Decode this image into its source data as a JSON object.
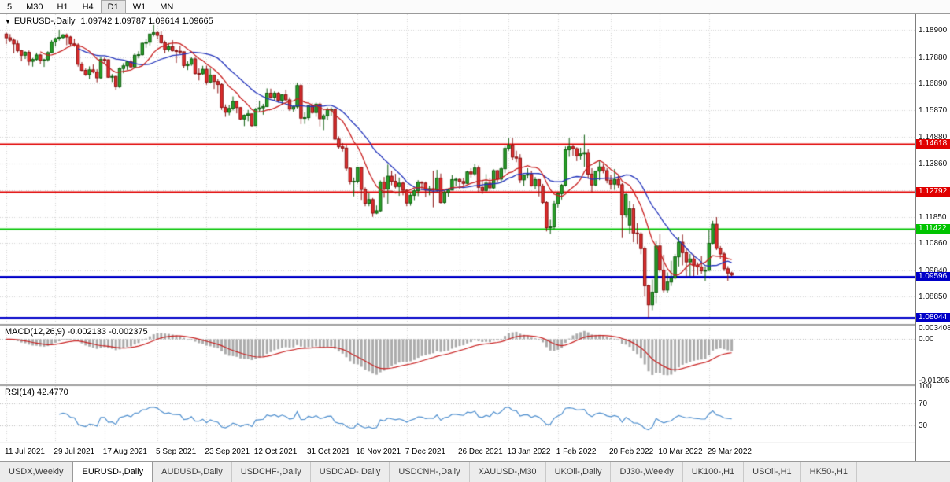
{
  "toolbar": {
    "timeframes": [
      "5",
      "M30",
      "H1",
      "H4",
      "D1",
      "W1",
      "MN"
    ],
    "active": "D1"
  },
  "chart_title": {
    "arrow": "▼",
    "symbol": "EURUSD-,Daily",
    "ohlc": "1.09742 1.09787 1.09614 1.09665"
  },
  "price_axis": {
    "labels": [
      "1.18900",
      "1.17880",
      "1.16890",
      "1.15870",
      "1.14880",
      "1.13860",
      "1.12870",
      "1.11850",
      "1.10860",
      "1.09840",
      "1.08850"
    ]
  },
  "hlines": [
    {
      "value": 1.14618,
      "label": "1.14618",
      "color": "#e00000",
      "width": 2
    },
    {
      "value": 1.12792,
      "label": "1.12792",
      "color": "#e00000",
      "width": 2
    },
    {
      "value": 1.11422,
      "label": "1.11422",
      "color": "#00c400",
      "width": 2
    },
    {
      "value": 1.09596,
      "label": "1.09596",
      "color": "#0000c8",
      "width": 3
    },
    {
      "value": 1.08044,
      "label": "1.08044",
      "color": "#0000c8",
      "width": 3
    }
  ],
  "indicators": {
    "macd": {
      "label": "MACD(12,26,9) -0.002133 -0.002375",
      "params": [
        12,
        26,
        9
      ],
      "values": [
        -0.002133,
        -0.002375
      ],
      "ylim": [
        -0.013,
        0.004
      ],
      "axis_labels": [
        {
          "text": "0.003408",
          "value": 0.003408
        },
        {
          "text": "0.00",
          "value": 0
        },
        {
          "text": "-0.012054",
          "value": -0.012054
        }
      ]
    },
    "rsi": {
      "label": "RSI(14) 42.4770",
      "period": 14,
      "value": 42.477,
      "levels": [
        70,
        30
      ],
      "axis_labels": [
        {
          "text": "100",
          "value": 100
        },
        {
          "text": "70",
          "value": 70
        },
        {
          "text": "30",
          "value": 30
        }
      ]
    }
  },
  "moving_averages": [
    {
      "period": 20,
      "color": "#2233bb"
    },
    {
      "period": 10,
      "color": "#c82020"
    }
  ],
  "colors": {
    "up": "#2aa12a",
    "up_border": "#0c5c0c",
    "down": "#df2e2e",
    "down_border": "#8a1111",
    "macd_hist": "#ababab",
    "macd_signal": "#c82020",
    "rsi": "#4f8fce",
    "grid": "#d2d2d2",
    "level": "#bbbbbb",
    "divider": "#a0a0a0"
  },
  "tab_bar": {
    "tabs": [
      {
        "label": "USDX,Weekly",
        "active": false
      },
      {
        "label": "EURUSD-,Daily",
        "active": true
      },
      {
        "label": "AUDUSD-,Daily",
        "active": false
      },
      {
        "label": "USDCHF-,Daily",
        "active": false
      },
      {
        "label": "USDCAD-,Daily",
        "active": false
      },
      {
        "label": "USDCNH-,Daily",
        "active": false
      },
      {
        "label": "XAUUSD-,M30",
        "active": false
      },
      {
        "label": "UKOil-,Daily",
        "active": false
      },
      {
        "label": "DJ30-,Weekly",
        "active": false
      },
      {
        "label": "UK100-,H1",
        "active": false
      },
      {
        "label": "USOil-,H1",
        "active": false
      },
      {
        "label": "HK50-,H1",
        "active": false
      }
    ]
  },
  "chart_data": {
    "type": "candlestick",
    "title": "EURUSD-,Daily",
    "ylim": [
      1.0785,
      1.195
    ],
    "x_labels": [
      {
        "index": 0,
        "label": "11 Jul 2021"
      },
      {
        "index": 13,
        "label": "29 Jul 2021"
      },
      {
        "index": 26,
        "label": "17 Aug 2021"
      },
      {
        "index": 40,
        "label": "5 Sep 2021"
      },
      {
        "index": 53,
        "label": "23 Sep 2021"
      },
      {
        "index": 66,
        "label": "12 Oct 2021"
      },
      {
        "index": 80,
        "label": "31 Oct 2021"
      },
      {
        "index": 93,
        "label": "18 Nov 2021"
      },
      {
        "index": 106,
        "label": "7 Dec 2021"
      },
      {
        "index": 120,
        "label": "26 Dec 2021"
      },
      {
        "index": 133,
        "label": "13 Jan 2022"
      },
      {
        "index": 146,
        "label": "1 Feb 2022"
      },
      {
        "index": 160,
        "label": "20 Feb 2022"
      },
      {
        "index": 173,
        "label": "10 Mar 2022"
      },
      {
        "index": 186,
        "label": "29 Mar 2022"
      }
    ],
    "candles": [
      [
        1.1875,
        1.1881,
        1.1837,
        1.1861
      ],
      [
        1.1861,
        1.1875,
        1.1844,
        1.1852
      ],
      [
        1.1852,
        1.1859,
        1.1802,
        1.1838
      ],
      [
        1.1838,
        1.1851,
        1.1806,
        1.1812
      ],
      [
        1.1812,
        1.1815,
        1.1772,
        1.1795
      ],
      [
        1.1795,
        1.181,
        1.1781,
        1.1806
      ],
      [
        1.1806,
        1.1813,
        1.1756,
        1.1772
      ],
      [
        1.1772,
        1.1785,
        1.1752,
        1.1779
      ],
      [
        1.1779,
        1.1805,
        1.1775,
        1.1796
      ],
      [
        1.1796,
        1.18,
        1.1762,
        1.1775
      ],
      [
        1.1775,
        1.1782,
        1.1751,
        1.1778
      ],
      [
        1.1778,
        1.181,
        1.1771,
        1.1805
      ],
      [
        1.1805,
        1.1852,
        1.1803,
        1.1845
      ],
      [
        1.1845,
        1.1862,
        1.1828,
        1.1858
      ],
      [
        1.1858,
        1.1891,
        1.185,
        1.1862
      ],
      [
        1.1862,
        1.1875,
        1.1856,
        1.1872
      ],
      [
        1.1872,
        1.1877,
        1.1833,
        1.1864
      ],
      [
        1.1864,
        1.1868,
        1.183,
        1.1838
      ],
      [
        1.1838,
        1.1858,
        1.1827,
        1.1834
      ],
      [
        1.1834,
        1.184,
        1.1752,
        1.1761
      ],
      [
        1.1761,
        1.1769,
        1.1735,
        1.1738
      ],
      [
        1.1738,
        1.1745,
        1.1717,
        1.1722
      ],
      [
        1.1722,
        1.1753,
        1.1705,
        1.174
      ],
      [
        1.174,
        1.176,
        1.1727,
        1.1732
      ],
      [
        1.1732,
        1.1742,
        1.1693,
        1.171
      ],
      [
        1.171,
        1.179,
        1.1705,
        1.1779
      ],
      [
        1.1779,
        1.1786,
        1.1765,
        1.1778
      ],
      [
        1.1778,
        1.1779,
        1.171,
        1.1712
      ],
      [
        1.1712,
        1.1724,
        1.1694,
        1.1715
      ],
      [
        1.1715,
        1.1718,
        1.1664,
        1.1676
      ],
      [
        1.1676,
        1.175,
        1.1671,
        1.1745
      ],
      [
        1.1745,
        1.1765,
        1.1727,
        1.1755
      ],
      [
        1.1755,
        1.1775,
        1.174,
        1.177
      ],
      [
        1.177,
        1.1779,
        1.1745,
        1.1751
      ],
      [
        1.1751,
        1.1802,
        1.1748,
        1.1795
      ],
      [
        1.1795,
        1.181,
        1.1783,
        1.1797
      ],
      [
        1.1797,
        1.1845,
        1.1793,
        1.184
      ],
      [
        1.184,
        1.1857,
        1.1823,
        1.1844
      ],
      [
        1.1844,
        1.1876,
        1.1832,
        1.1875
      ],
      [
        1.1875,
        1.1909,
        1.1866,
        1.188
      ],
      [
        1.188,
        1.1885,
        1.1855,
        1.187
      ],
      [
        1.187,
        1.1885,
        1.1838,
        1.1842
      ],
      [
        1.1842,
        1.185,
        1.1802,
        1.1817
      ],
      [
        1.1817,
        1.1841,
        1.1809,
        1.1827
      ],
      [
        1.1827,
        1.1852,
        1.1809,
        1.1812
      ],
      [
        1.1812,
        1.1818,
        1.1766,
        1.181
      ],
      [
        1.181,
        1.1831,
        1.1799,
        1.1808
      ],
      [
        1.1808,
        1.1809,
        1.1747,
        1.1756
      ],
      [
        1.1756,
        1.1772,
        1.1739,
        1.1761
      ],
      [
        1.1761,
        1.1788,
        1.1755,
        1.1781
      ],
      [
        1.1781,
        1.1787,
        1.1722,
        1.1726
      ],
      [
        1.1726,
        1.1745,
        1.17,
        1.1725
      ],
      [
        1.1725,
        1.1755,
        1.1721,
        1.1742
      ],
      [
        1.1742,
        1.1756,
        1.1684,
        1.1694
      ],
      [
        1.1694,
        1.1745,
        1.169,
        1.172
      ],
      [
        1.172,
        1.1722,
        1.1668,
        1.1696
      ],
      [
        1.1696,
        1.1705,
        1.1652,
        1.1685
      ],
      [
        1.1685,
        1.169,
        1.1589,
        1.1599
      ],
      [
        1.1599,
        1.161,
        1.1563,
        1.158
      ],
      [
        1.158,
        1.1608,
        1.1569,
        1.1595
      ],
      [
        1.1595,
        1.164,
        1.1587,
        1.1621
      ],
      [
        1.1621,
        1.1622,
        1.1576,
        1.1598
      ],
      [
        1.1598,
        1.16,
        1.1551,
        1.1555
      ],
      [
        1.1555,
        1.1572,
        1.1528,
        1.1569
      ],
      [
        1.1569,
        1.1589,
        1.1546,
        1.1574
      ],
      [
        1.1574,
        1.1575,
        1.1524,
        1.153
      ],
      [
        1.153,
        1.1597,
        1.1529,
        1.1592
      ],
      [
        1.1592,
        1.1624,
        1.1583,
        1.1597
      ],
      [
        1.1597,
        1.1612,
        1.1571,
        1.1602
      ],
      [
        1.1602,
        1.167,
        1.16,
        1.1652
      ],
      [
        1.1652,
        1.1669,
        1.1632,
        1.1637
      ],
      [
        1.1637,
        1.1659,
        1.1623,
        1.1652
      ],
      [
        1.1652,
        1.1656,
        1.1617,
        1.1625
      ],
      [
        1.1625,
        1.1647,
        1.161,
        1.1646
      ],
      [
        1.1646,
        1.1665,
        1.1621,
        1.1627
      ],
      [
        1.1627,
        1.1637,
        1.1585,
        1.1592
      ],
      [
        1.1592,
        1.1607,
        1.1582,
        1.1601
      ],
      [
        1.1601,
        1.1692,
        1.1595,
        1.1681
      ],
      [
        1.1681,
        1.1686,
        1.1535,
        1.1558
      ],
      [
        1.1558,
        1.158,
        1.1536,
        1.156
      ],
      [
        1.156,
        1.1609,
        1.1549,
        1.1605
      ],
      [
        1.1605,
        1.1614,
        1.1575,
        1.1579
      ],
      [
        1.1579,
        1.1617,
        1.1563,
        1.1611
      ],
      [
        1.1611,
        1.1617,
        1.1527,
        1.1556
      ],
      [
        1.1556,
        1.1573,
        1.1513,
        1.1567
      ],
      [
        1.1567,
        1.1598,
        1.1551,
        1.1589
      ],
      [
        1.1589,
        1.1599,
        1.1567,
        1.1591
      ],
      [
        1.1591,
        1.1595,
        1.1475,
        1.1479
      ],
      [
        1.1479,
        1.1489,
        1.1443,
        1.145
      ],
      [
        1.145,
        1.1464,
        1.1432,
        1.1445
      ],
      [
        1.1445,
        1.1456,
        1.1359,
        1.1369
      ],
      [
        1.1369,
        1.1372,
        1.1308,
        1.1319
      ],
      [
        1.1319,
        1.1334,
        1.1263,
        1.132
      ],
      [
        1.132,
        1.1374,
        1.1312,
        1.1372
      ],
      [
        1.1372,
        1.1374,
        1.125,
        1.1289
      ],
      [
        1.1289,
        1.1297,
        1.1226,
        1.1237
      ],
      [
        1.1237,
        1.1275,
        1.1226,
        1.1251
      ],
      [
        1.1251,
        1.1257,
        1.1186,
        1.12
      ],
      [
        1.12,
        1.1229,
        1.1196,
        1.1209
      ],
      [
        1.1209,
        1.1323,
        1.1203,
        1.1317
      ],
      [
        1.1317,
        1.1336,
        1.1258,
        1.129
      ],
      [
        1.129,
        1.1383,
        1.1235,
        1.1339
      ],
      [
        1.1339,
        1.136,
        1.1305,
        1.132
      ],
      [
        1.132,
        1.1348,
        1.1293,
        1.13
      ],
      [
        1.13,
        1.1334,
        1.1265,
        1.1313
      ],
      [
        1.1313,
        1.1319,
        1.1267,
        1.1286
      ],
      [
        1.1286,
        1.129,
        1.1226,
        1.1238
      ],
      [
        1.1238,
        1.1276,
        1.1228,
        1.1267
      ],
      [
        1.1267,
        1.1292,
        1.1249,
        1.1284
      ],
      [
        1.1284,
        1.1324,
        1.1264,
        1.1317
      ],
      [
        1.1317,
        1.132,
        1.1285,
        1.1313
      ],
      [
        1.1313,
        1.1319,
        1.126,
        1.1286
      ],
      [
        1.1286,
        1.1303,
        1.1267,
        1.1292
      ],
      [
        1.1292,
        1.136,
        1.1222,
        1.1287
      ],
      [
        1.1287,
        1.1363,
        1.128,
        1.1332
      ],
      [
        1.1332,
        1.1349,
        1.1236,
        1.124
      ],
      [
        1.124,
        1.1285,
        1.1234,
        1.1278
      ],
      [
        1.1278,
        1.1293,
        1.1262,
        1.1287
      ],
      [
        1.1287,
        1.1343,
        1.1285,
        1.1326
      ],
      [
        1.1326,
        1.1334,
        1.1302,
        1.1327
      ],
      [
        1.1327,
        1.1331,
        1.1291,
        1.1319
      ],
      [
        1.1319,
        1.1333,
        1.1304,
        1.1312
      ],
      [
        1.1312,
        1.136,
        1.131,
        1.1355
      ],
      [
        1.1355,
        1.1369,
        1.1334,
        1.1348
      ],
      [
        1.1348,
        1.1386,
        1.134,
        1.137
      ],
      [
        1.137,
        1.1379,
        1.1279,
        1.1297
      ],
      [
        1.1297,
        1.1323,
        1.1272,
        1.1285
      ],
      [
        1.1285,
        1.1347,
        1.128,
        1.1313
      ],
      [
        1.1313,
        1.1333,
        1.1285,
        1.1295
      ],
      [
        1.1295,
        1.1365,
        1.1289,
        1.136
      ],
      [
        1.136,
        1.1362,
        1.1315,
        1.1328
      ],
      [
        1.1328,
        1.1375,
        1.1314,
        1.1367
      ],
      [
        1.1367,
        1.1453,
        1.1351,
        1.1444
      ],
      [
        1.1444,
        1.1482,
        1.1435,
        1.1455
      ],
      [
        1.1455,
        1.1483,
        1.1399,
        1.1411
      ],
      [
        1.1411,
        1.1435,
        1.1392,
        1.1407
      ],
      [
        1.1407,
        1.1422,
        1.1313,
        1.1325
      ],
      [
        1.1325,
        1.1346,
        1.1302,
        1.1343
      ],
      [
        1.1343,
        1.1369,
        1.133,
        1.1346
      ],
      [
        1.1346,
        1.136,
        1.13,
        1.1303
      ],
      [
        1.1303,
        1.1336,
        1.129,
        1.1326
      ],
      [
        1.1326,
        1.1328,
        1.1263,
        1.1302
      ],
      [
        1.1302,
        1.131,
        1.1233,
        1.124
      ],
      [
        1.124,
        1.1245,
        1.1131,
        1.1145
      ],
      [
        1.1145,
        1.1175,
        1.1121,
        1.1148
      ],
      [
        1.1148,
        1.1248,
        1.114,
        1.1235
      ],
      [
        1.1235,
        1.1279,
        1.1221,
        1.1273
      ],
      [
        1.1273,
        1.131,
        1.1251,
        1.1305
      ],
      [
        1.1305,
        1.1451,
        1.13,
        1.1439
      ],
      [
        1.1439,
        1.1483,
        1.1412,
        1.145
      ],
      [
        1.145,
        1.1459,
        1.1416,
        1.1443
      ],
      [
        1.1443,
        1.1448,
        1.1396,
        1.1416
      ],
      [
        1.1416,
        1.1446,
        1.1402,
        1.1423
      ],
      [
        1.1423,
        1.1495,
        1.1375,
        1.1428
      ],
      [
        1.1428,
        1.144,
        1.1329,
        1.1347
      ],
      [
        1.1347,
        1.1369,
        1.128,
        1.1306
      ],
      [
        1.1306,
        1.1359,
        1.1301,
        1.1358
      ],
      [
        1.1358,
        1.1395,
        1.1324,
        1.1374
      ],
      [
        1.1374,
        1.1385,
        1.135,
        1.136
      ],
      [
        1.136,
        1.137,
        1.1312,
        1.1324
      ],
      [
        1.1324,
        1.1344,
        1.1288,
        1.1309
      ],
      [
        1.1309,
        1.1366,
        1.1287,
        1.1327
      ],
      [
        1.1327,
        1.1341,
        1.1295,
        1.1307
      ],
      [
        1.1307,
        1.1313,
        1.1106,
        1.1193
      ],
      [
        1.1193,
        1.1274,
        1.1184,
        1.127
      ],
      [
        1.1155,
        1.1246,
        1.1122,
        1.1216
      ],
      [
        1.1216,
        1.1233,
        1.109,
        1.1125
      ],
      [
        1.1125,
        1.1162,
        1.1084,
        1.1122
      ],
      [
        1.1122,
        1.1128,
        1.1045,
        1.1066
      ],
      [
        1.1066,
        1.1074,
        1.0885,
        1.0926
      ],
      [
        1.0926,
        1.0931,
        1.0806,
        1.0854
      ],
      [
        1.0854,
        1.095,
        1.0834,
        1.0902
      ],
      [
        1.0902,
        1.1095,
        1.0861,
        1.1076
      ],
      [
        1.1076,
        1.1121,
        1.0976,
        1.0985
      ],
      [
        1.0985,
        1.1043,
        1.0901,
        1.091
      ],
      [
        1.091,
        1.0976,
        1.09,
        1.094
      ],
      [
        1.094,
        1.102,
        1.0925,
        1.0955
      ],
      [
        1.0955,
        1.1046,
        1.095,
        1.1035
      ],
      [
        1.1035,
        1.1109,
        1.0999,
        1.109
      ],
      [
        1.109,
        1.1119,
        1.1003,
        1.1051
      ],
      [
        1.1051,
        1.1069,
        1.0961,
        1.1016
      ],
      [
        1.1016,
        1.1046,
        1.0963,
        1.1027
      ],
      [
        1.1027,
        1.1044,
        1.0963,
        1.1004
      ],
      [
        1.1004,
        1.1014,
        1.0966,
        1.0997
      ],
      [
        1.0997,
        1.1038,
        1.0971,
        1.0982
      ],
      [
        1.0982,
        1.0999,
        1.0944,
        1.0984
      ],
      [
        1.0984,
        1.1137,
        1.0982,
        1.1086
      ],
      [
        1.1086,
        1.1171,
        1.1083,
        1.1158
      ],
      [
        1.1158,
        1.1185,
        1.1061,
        1.1067
      ],
      [
        1.1067,
        1.1076,
        1.1027,
        1.1046
      ],
      [
        1.1046,
        1.1055,
        1.0981,
        1.099
      ],
      [
        1.099,
        1.1,
        1.0945,
        1.0974
      ],
      [
        1.09742,
        1.09787,
        1.09614,
        1.09665
      ]
    ]
  }
}
